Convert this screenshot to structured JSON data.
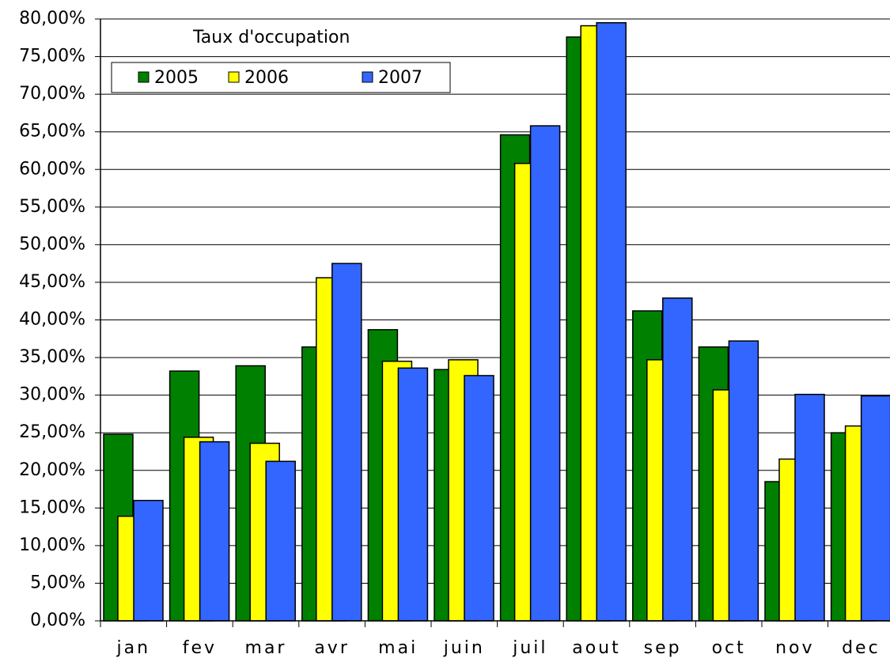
{
  "chart_data": {
    "type": "bar",
    "title": "Taux d'occupation",
    "categories": [
      "jan",
      "fev",
      "mar",
      "avr",
      "mai",
      "juin",
      "juil",
      "aout",
      "sep",
      "oct",
      "nov",
      "dec"
    ],
    "series": [
      {
        "name": "2005",
        "color": "#008000",
        "values": [
          24.8,
          33.2,
          33.9,
          36.4,
          38.7,
          33.4,
          64.6,
          77.6,
          41.2,
          36.4,
          18.5,
          25.0
        ]
      },
      {
        "name": "2006",
        "color": "#ffff00",
        "values": [
          13.9,
          24.4,
          23.6,
          45.6,
          34.5,
          34.7,
          60.8,
          79.1,
          34.7,
          30.7,
          21.5,
          25.9
        ]
      },
      {
        "name": "2007",
        "color": "#3366ff",
        "values": [
          16.0,
          23.8,
          21.2,
          47.5,
          33.6,
          32.6,
          65.8,
          79.5,
          42.9,
          37.2,
          30.1,
          29.9
        ]
      }
    ],
    "ylim": [
      0,
      80
    ],
    "yticks": [
      {
        "value": 0,
        "label": "0,00%"
      },
      {
        "value": 5,
        "label": "5,00%"
      },
      {
        "value": 10,
        "label": "10,00%"
      },
      {
        "value": 15,
        "label": "15,00%"
      },
      {
        "value": 20,
        "label": "20,00%"
      },
      {
        "value": 25,
        "label": "25,00%"
      },
      {
        "value": 30,
        "label": "30,00%"
      },
      {
        "value": 35,
        "label": "35,00%"
      },
      {
        "value": 40,
        "label": "40,00%"
      },
      {
        "value": 45,
        "label": "45,00%"
      },
      {
        "value": 50,
        "label": "50,00%"
      },
      {
        "value": 55,
        "label": "55,00%"
      },
      {
        "value": 60,
        "label": "60,00%"
      },
      {
        "value": 65,
        "label": "65,00%"
      },
      {
        "value": 70,
        "label": "70,00%"
      },
      {
        "value": 75,
        "label": "75,00%"
      },
      {
        "value": 80,
        "label": "80,00%"
      }
    ],
    "grid": true
  }
}
